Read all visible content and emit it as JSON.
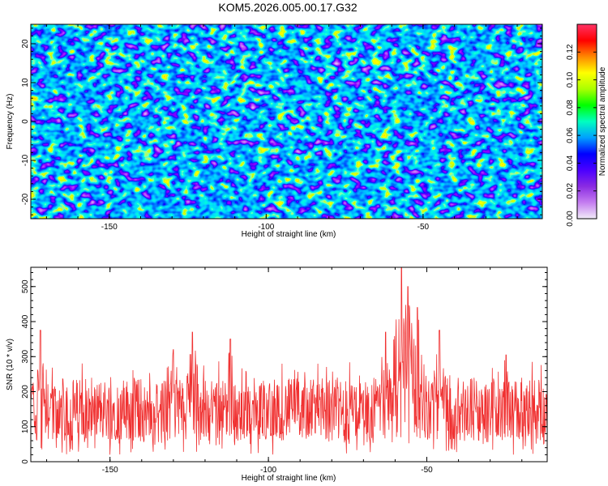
{
  "title": "KOM5.2026.005.00.17.G32",
  "chart_data": [
    {
      "type": "heatmap",
      "xlabel": "Height of straight line (km)",
      "ylabel": "Frequency (Hz)",
      "xlim": [
        -175,
        -12
      ],
      "ylim": [
        -25,
        25
      ],
      "xticks": [
        -150,
        -100,
        -50
      ],
      "yticks": [
        -20,
        -10,
        0,
        10,
        20
      ],
      "colorbar": {
        "label": "Normalized spectral amplitude",
        "range": [
          0,
          0.14
        ],
        "ticks": [
          0.0,
          0.02,
          0.04,
          0.06,
          0.08,
          0.1,
          0.12
        ],
        "tick_labels": [
          "0.00",
          "0.02",
          "0.04",
          "0.06",
          "0.08",
          "0.10",
          "0.12"
        ],
        "colors": [
          "#f2ecf8",
          "#c47df0",
          "#8a2be2",
          "#4b00ff",
          "#0000ff",
          "#00a0ff",
          "#00ffc0",
          "#00ff00",
          "#aaff00",
          "#ffff00",
          "#ff8800",
          "#ff0000",
          "#ff3366"
        ]
      },
      "description": "dense speckled noise of spectral amplitude over frequency vs height; mostly 0.02-0.06 with scattered peaks up to ~0.13"
    },
    {
      "type": "line",
      "xlabel": "Height of straight line (km)",
      "ylabel": "SNR (10 * v/v)",
      "xlim": [
        -175,
        -12
      ],
      "ylim": [
        0,
        555
      ],
      "xticks": [
        -150,
        -100,
        -50
      ],
      "yticks": [
        0,
        100,
        200,
        300,
        400,
        500
      ],
      "color": "#f03030",
      "baseline_range": [
        60,
        240
      ],
      "peaks": [
        {
          "x": -172,
          "y": 375
        },
        {
          "x": -130,
          "y": 320
        },
        {
          "x": -124,
          "y": 370
        },
        {
          "x": -112,
          "y": 350
        },
        {
          "x": -63,
          "y": 370
        },
        {
          "x": -58,
          "y": 555
        },
        {
          "x": -56,
          "y": 500
        },
        {
          "x": -53,
          "y": 440
        },
        {
          "x": -46,
          "y": 375
        },
        {
          "x": -25,
          "y": 305
        }
      ]
    }
  ]
}
